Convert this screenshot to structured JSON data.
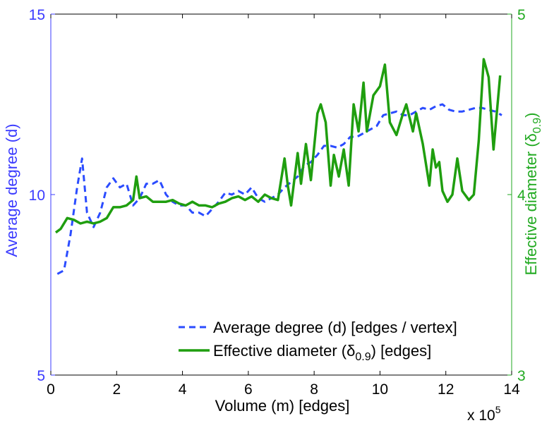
{
  "chart_data": {
    "type": "line",
    "xlabel": "Volume (m) [edges]",
    "x_exponent_label": "x 10",
    "x_exponent_power": "5",
    "xlim": [
      0,
      14
    ],
    "x_ticks": [
      "0",
      "2",
      "4",
      "6",
      "8",
      "10",
      "12",
      "14"
    ],
    "ylabel_left": "Average degree (d)",
    "ylim_left": [
      5,
      15
    ],
    "y_ticks_left": [
      "5",
      "10",
      "15"
    ],
    "ylabel_right_main": "Effective diameter (δ",
    "ylabel_right_sub": "0.9",
    "ylabel_right_end": ")",
    "ylim_right": [
      3,
      5
    ],
    "y_ticks_right": [
      "3",
      "4",
      "5"
    ],
    "legend_position": "bottom-right",
    "colors": {
      "left_axis": "#3b3bff",
      "right_axis": "#22aa22",
      "series_degree": "#2b4cff",
      "series_diameter": "#1f9e0f"
    },
    "series": [
      {
        "name_main": "Average degree (d) [edges / vertex]",
        "style": "dashed",
        "axis": "left",
        "x": [
          0.2,
          0.4,
          0.6,
          0.8,
          0.95,
          1.1,
          1.3,
          1.5,
          1.7,
          1.9,
          2.1,
          2.3,
          2.5,
          2.7,
          2.9,
          3.1,
          3.3,
          3.5,
          3.7,
          3.9,
          4.1,
          4.3,
          4.5,
          4.7,
          4.9,
          5.1,
          5.3,
          5.5,
          5.7,
          5.9,
          6.1,
          6.3,
          6.5,
          6.7,
          6.9,
          7.1,
          7.3,
          7.5,
          7.7,
          7.9,
          8.1,
          8.3,
          8.5,
          8.7,
          8.9,
          9.1,
          9.3,
          9.5,
          9.7,
          9.9,
          10.1,
          10.3,
          10.5,
          10.7,
          10.9,
          11.1,
          11.3,
          11.5,
          11.7,
          11.9,
          12.1,
          12.3,
          12.5,
          12.7,
          12.9,
          13.1,
          13.3,
          13.5,
          13.7
        ],
        "values": [
          7.8,
          7.9,
          8.9,
          10.2,
          11.0,
          9.5,
          9.1,
          9.5,
          10.2,
          10.45,
          10.2,
          10.3,
          9.7,
          9.9,
          10.3,
          10.3,
          10.4,
          10.0,
          9.8,
          9.7,
          9.7,
          9.5,
          9.5,
          9.4,
          9.6,
          9.8,
          10.05,
          10.0,
          10.1,
          10.0,
          10.2,
          9.9,
          9.8,
          9.9,
          10.0,
          10.2,
          10.35,
          10.5,
          10.8,
          10.9,
          11.1,
          11.35,
          11.35,
          11.3,
          11.4,
          11.6,
          11.6,
          11.7,
          11.8,
          11.9,
          12.2,
          12.25,
          12.3,
          12.2,
          12.2,
          12.3,
          12.4,
          12.35,
          12.45,
          12.5,
          12.35,
          12.3,
          12.3,
          12.35,
          12.4,
          12.4,
          12.35,
          12.3,
          12.2
        ]
      },
      {
        "name_main": "Effective diameter (δ",
        "name_sub": "0.9",
        "name_end": ") [edges]",
        "style": "solid",
        "axis": "right",
        "x": [
          0.15,
          0.3,
          0.5,
          0.7,
          0.9,
          1.1,
          1.3,
          1.5,
          1.7,
          1.9,
          2.1,
          2.3,
          2.5,
          2.6,
          2.7,
          2.9,
          3.1,
          3.3,
          3.5,
          3.7,
          3.9,
          4.1,
          4.3,
          4.5,
          4.7,
          4.9,
          5.1,
          5.3,
          5.5,
          5.7,
          5.9,
          6.1,
          6.3,
          6.5,
          6.7,
          6.9,
          7.1,
          7.2,
          7.3,
          7.5,
          7.6,
          7.75,
          7.9,
          8.1,
          8.2,
          8.35,
          8.5,
          8.6,
          8.75,
          8.9,
          9.05,
          9.2,
          9.35,
          9.5,
          9.6,
          9.8,
          10.0,
          10.15,
          10.3,
          10.5,
          10.7,
          10.8,
          11.0,
          11.1,
          11.3,
          11.5,
          11.6,
          11.7,
          11.8,
          11.9,
          12.05,
          12.2,
          12.35,
          12.5,
          12.7,
          12.85,
          13.0,
          13.15,
          13.3,
          13.45,
          13.65
        ],
        "values": [
          3.79,
          3.81,
          3.87,
          3.86,
          3.84,
          3.85,
          3.84,
          3.85,
          3.87,
          3.93,
          3.93,
          3.94,
          3.97,
          4.1,
          3.98,
          3.99,
          3.96,
          3.96,
          3.96,
          3.97,
          3.95,
          3.94,
          3.96,
          3.94,
          3.94,
          3.93,
          3.95,
          3.96,
          3.98,
          3.99,
          3.97,
          3.99,
          3.96,
          4.0,
          3.98,
          3.97,
          4.2,
          4.05,
          3.94,
          4.23,
          4.06,
          4.28,
          4.08,
          4.45,
          4.5,
          4.4,
          4.05,
          4.22,
          4.1,
          4.25,
          4.05,
          4.5,
          4.35,
          4.62,
          4.35,
          4.55,
          4.6,
          4.72,
          4.4,
          4.33,
          4.45,
          4.5,
          4.35,
          4.45,
          4.28,
          4.05,
          4.25,
          4.15,
          4.18,
          4.02,
          3.96,
          4.0,
          4.2,
          4.02,
          3.97,
          4.0,
          4.3,
          4.75,
          4.65,
          4.25,
          4.66
        ]
      }
    ]
  }
}
